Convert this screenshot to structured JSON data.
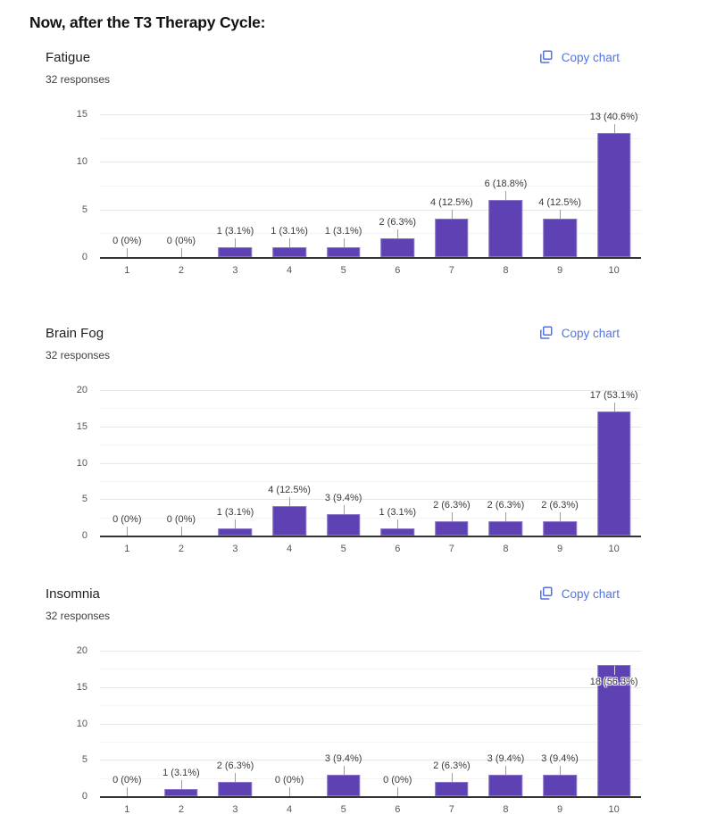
{
  "page_title": "Now, after the T3 Therapy Cycle:",
  "copy_chart_label": "Copy chart",
  "colors": {
    "bar": "#5e42b4",
    "link_blue": "#5472e4",
    "baseline": "#333333",
    "gridline": "#e8e8e8",
    "axis_text": "#565656",
    "label_text": "#3a3a3a"
  },
  "chart_data": [
    {
      "type": "bar",
      "title": "Fatigue",
      "subtitle": "32 responses",
      "categories": [
        "1",
        "2",
        "3",
        "4",
        "5",
        "6",
        "7",
        "8",
        "9",
        "10"
      ],
      "values": [
        0,
        0,
        1,
        1,
        1,
        2,
        4,
        6,
        4,
        13
      ],
      "point_labels": [
        "0 (0%)",
        "0 (0%)",
        "1 (3.1%)",
        "1 (3.1%)",
        "1 (3.1%)",
        "2 (6.3%)",
        "4 (12.5%)",
        "6 (18.8%)",
        "4 (12.5%)",
        "13 (40.6%)"
      ],
      "ylim": [
        0,
        15
      ],
      "yticks": [
        0,
        5,
        10,
        15
      ],
      "grid": true,
      "legend": "none"
    },
    {
      "type": "bar",
      "title": "Brain Fog",
      "subtitle": "32 responses",
      "categories": [
        "1",
        "2",
        "3",
        "4",
        "5",
        "6",
        "7",
        "8",
        "9",
        "10"
      ],
      "values": [
        0,
        0,
        1,
        4,
        3,
        1,
        2,
        2,
        2,
        17
      ],
      "point_labels": [
        "0 (0%)",
        "0 (0%)",
        "1 (3.1%)",
        "4 (12.5%)",
        "3 (9.4%)",
        "1 (3.1%)",
        "2 (6.3%)",
        "2 (6.3%)",
        "2 (6.3%)",
        "17 (53.1%)"
      ],
      "ylim": [
        0,
        20
      ],
      "yticks": [
        0,
        5,
        10,
        15,
        20
      ],
      "grid": true,
      "legend": "none"
    },
    {
      "type": "bar",
      "title": "Insomnia",
      "subtitle": "32 responses",
      "categories": [
        "1",
        "2",
        "3",
        "4",
        "5",
        "6",
        "7",
        "8",
        "9",
        "10"
      ],
      "values": [
        0,
        1,
        2,
        0,
        3,
        0,
        2,
        3,
        3,
        18
      ],
      "point_labels": [
        "0 (0%)",
        "1 (3.1%)",
        "2 (6.3%)",
        "0 (0%)",
        "3 (9.4%)",
        "0 (0%)",
        "2 (6.3%)",
        "3 (9.4%)",
        "3 (9.4%)",
        "18 (56.3%)"
      ],
      "ylim": [
        0,
        20
      ],
      "yticks": [
        0,
        5,
        10,
        15,
        20
      ],
      "grid": true,
      "legend": "none"
    }
  ]
}
